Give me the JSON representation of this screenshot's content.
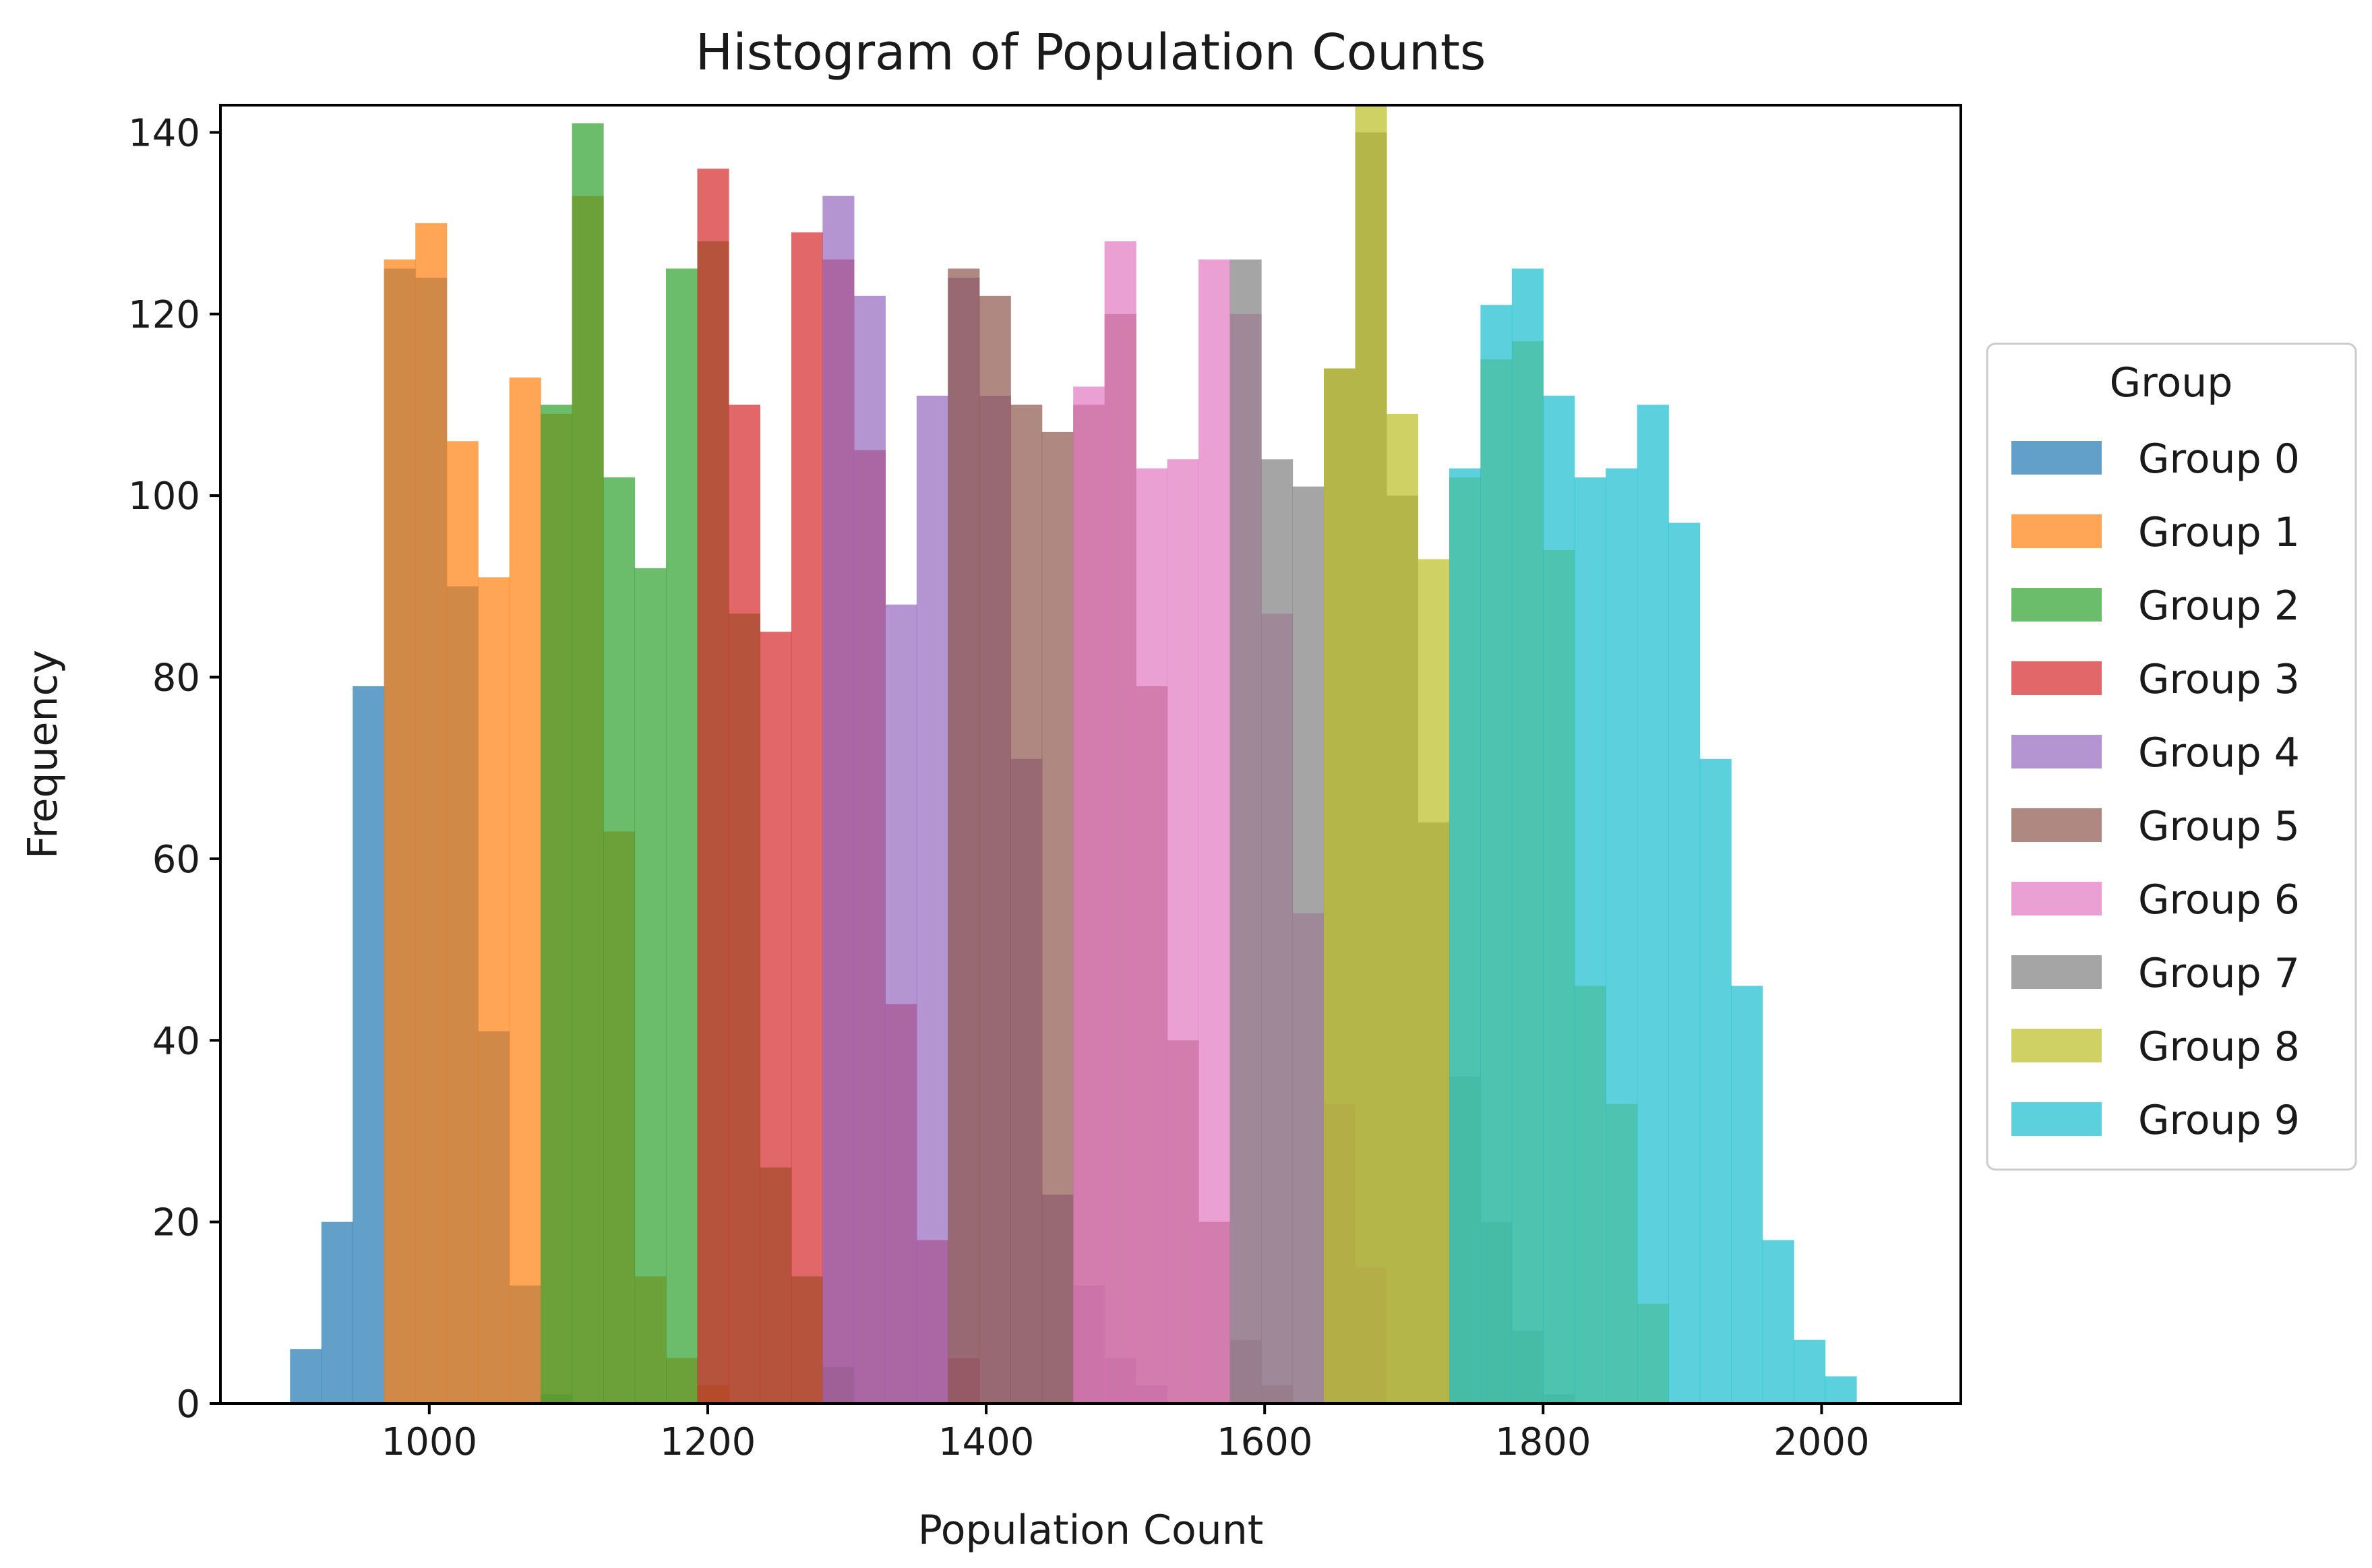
{
  "chart_data": {
    "type": "bar",
    "subtype": "overlapping-histogram",
    "title": "Histogram of Population Counts",
    "xlabel": "Population Count",
    "ylabel": "Frequency",
    "xlim": [
      850,
      2100
    ],
    "ylim": [
      0,
      143
    ],
    "xticks": [
      "1000",
      "1200",
      "1400",
      "1600",
      "1800",
      "2000"
    ],
    "yticks": [
      "0",
      "20",
      "40",
      "60",
      "80",
      "100",
      "120",
      "140"
    ],
    "grid": false,
    "legend": {
      "title": "Group",
      "placement": "right-outside"
    },
    "bar_alpha": 0.7,
    "series": [
      {
        "name": "Group 0",
        "color": "#1f77b4",
        "bins": [
          [
            900,
            6
          ],
          [
            922.5,
            20
          ],
          [
            945,
            79
          ],
          [
            967.5,
            125
          ],
          [
            990,
            124
          ],
          [
            1012.5,
            90
          ],
          [
            1035,
            41
          ],
          [
            1057.5,
            13
          ],
          [
            1080,
            1
          ]
        ]
      },
      {
        "name": "Group 1",
        "color": "#ff7f0e",
        "bins": [
          [
            967.5,
            126
          ],
          [
            990,
            130
          ],
          [
            1012.5,
            106
          ],
          [
            1035,
            91
          ],
          [
            1057.5,
            113
          ],
          [
            1080,
            109
          ],
          [
            1102.5,
            133
          ],
          [
            1125,
            63
          ],
          [
            1147.5,
            14
          ],
          [
            1170,
            5
          ],
          [
            1192.5,
            2
          ]
        ]
      },
      {
        "name": "Group 2",
        "color": "#2ca02c",
        "bins": [
          [
            1080,
            110
          ],
          [
            1102.5,
            141
          ],
          [
            1125,
            102
          ],
          [
            1147.5,
            92
          ],
          [
            1170,
            125
          ],
          [
            1192.5,
            128
          ],
          [
            1215,
            87
          ],
          [
            1237.5,
            26
          ],
          [
            1260,
            14
          ],
          [
            1282.5,
            4
          ]
        ]
      },
      {
        "name": "Group 3",
        "color": "#d62728",
        "bins": [
          [
            1192.5,
            136
          ],
          [
            1215,
            110
          ],
          [
            1237.5,
            85
          ],
          [
            1260,
            129
          ],
          [
            1282.5,
            126
          ],
          [
            1305,
            105
          ],
          [
            1327.5,
            44
          ],
          [
            1350,
            18
          ],
          [
            1372.5,
            5
          ]
        ]
      },
      {
        "name": "Group 4",
        "color": "#9467bd",
        "bins": [
          [
            1282.5,
            133
          ],
          [
            1305,
            122
          ],
          [
            1327.5,
            88
          ],
          [
            1350,
            111
          ],
          [
            1372.5,
            124
          ],
          [
            1395,
            111
          ],
          [
            1417.5,
            71
          ],
          [
            1440,
            23
          ],
          [
            1462.5,
            13
          ],
          [
            1485,
            5
          ],
          [
            1507.5,
            2
          ]
        ]
      },
      {
        "name": "Group 5",
        "color": "#8c564b",
        "bins": [
          [
            1372.5,
            125
          ],
          [
            1395,
            122
          ],
          [
            1417.5,
            110
          ],
          [
            1440,
            107
          ],
          [
            1462.5,
            110
          ],
          [
            1485,
            120
          ],
          [
            1507.5,
            79
          ],
          [
            1530,
            40
          ],
          [
            1552.5,
            20
          ],
          [
            1575,
            7
          ],
          [
            1597.5,
            2
          ]
        ]
      },
      {
        "name": "Group 6",
        "color": "#e377c2",
        "bins": [
          [
            1462.5,
            112
          ],
          [
            1485,
            128
          ],
          [
            1507.5,
            103
          ],
          [
            1530,
            104
          ],
          [
            1552.5,
            126
          ],
          [
            1575,
            120
          ],
          [
            1597.5,
            87
          ],
          [
            1620,
            54
          ],
          [
            1642.5,
            33
          ],
          [
            1665,
            15
          ]
        ]
      },
      {
        "name": "Group 7",
        "color": "#7f7f7f",
        "bins": [
          [
            1575,
            126
          ],
          [
            1597.5,
            104
          ],
          [
            1620,
            101
          ],
          [
            1642.5,
            114
          ],
          [
            1665,
            140
          ],
          [
            1687.5,
            100
          ],
          [
            1710,
            64
          ],
          [
            1732.5,
            36
          ],
          [
            1755,
            20
          ],
          [
            1777.5,
            8
          ],
          [
            1800,
            1
          ]
        ]
      },
      {
        "name": "Group 8",
        "color": "#bcbd22",
        "bins": [
          [
            1642.5,
            114
          ],
          [
            1665,
            143
          ],
          [
            1687.5,
            109
          ],
          [
            1710,
            93
          ],
          [
            1732.5,
            102
          ],
          [
            1755,
            115
          ],
          [
            1777.5,
            117
          ],
          [
            1800,
            94
          ],
          [
            1822.5,
            46
          ],
          [
            1845,
            33
          ],
          [
            1867.5,
            11
          ]
        ]
      },
      {
        "name": "Group 9",
        "color": "#17becf",
        "bins": [
          [
            1732.5,
            103
          ],
          [
            1755,
            121
          ],
          [
            1777.5,
            125
          ],
          [
            1800,
            111
          ],
          [
            1822.5,
            102
          ],
          [
            1845,
            103
          ],
          [
            1867.5,
            110
          ],
          [
            1890,
            97
          ],
          [
            1912.5,
            71
          ],
          [
            1935,
            46
          ],
          [
            1957.5,
            18
          ],
          [
            1980,
            7
          ],
          [
            2002.5,
            3
          ]
        ]
      }
    ]
  }
}
